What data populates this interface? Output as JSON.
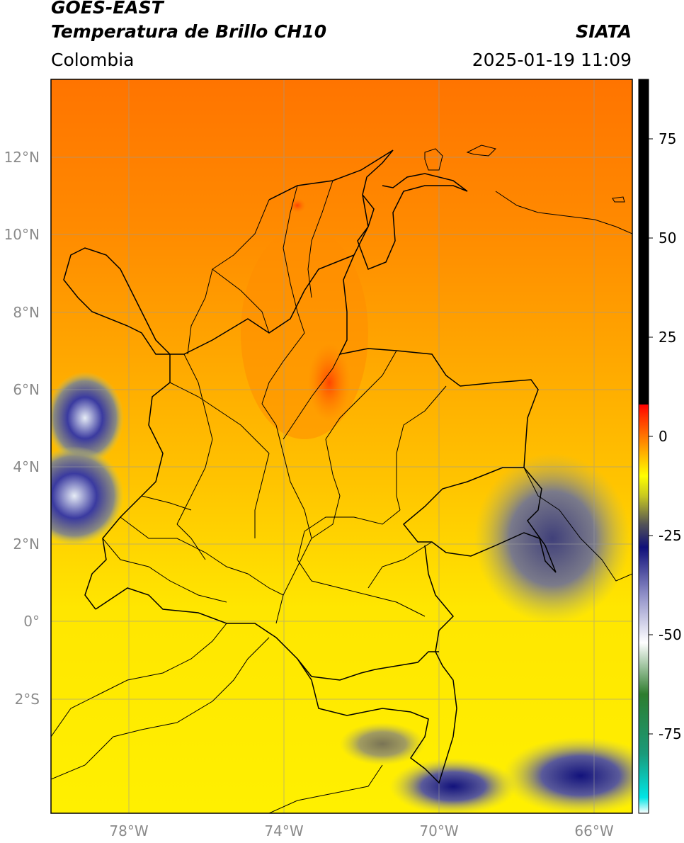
{
  "header": {
    "satellite": "GOES-EAST",
    "product": "Temperatura de Brillo CH10",
    "region": "Colombia",
    "source": "SIATA",
    "datetime": "2025-01-19 11:09"
  },
  "map": {
    "lat_ticks": [
      "12°N",
      "10°N",
      "8°N",
      "6°N",
      "4°N",
      "2°N",
      "0°",
      "2°S"
    ],
    "lon_ticks": [
      "78°W",
      "74°W",
      "70°W",
      "66°W"
    ],
    "extent": {
      "lon_min": -80.0,
      "lon_max": -65.0,
      "lat_min": -5.0,
      "lat_max": 14.0
    },
    "colors": {
      "warm_orange": "#ff7a00",
      "mid_orange": "#ffa000",
      "yellow": "#ffe600",
      "bright_yellow": "#fff200",
      "cloud_blue": "#1a1a8c",
      "border": "#000000"
    }
  },
  "colorbar": {
    "ticks": [
      "75",
      "50",
      "25",
      "0",
      "-25",
      "-50",
      "-75"
    ],
    "tick_values": [
      75,
      50,
      25,
      0,
      -25,
      -50,
      -75
    ],
    "range": [
      -95,
      90
    ],
    "stops": [
      {
        "v": -95,
        "c": "#ffffff"
      },
      {
        "v": -91,
        "c": "#00e5e5"
      },
      {
        "v": -80,
        "c": "#1a9a7a"
      },
      {
        "v": -65,
        "c": "#2e7d2e"
      },
      {
        "v": -52,
        "c": "#ffffff"
      },
      {
        "v": -40,
        "c": "#9090c8"
      },
      {
        "v": -28,
        "c": "#10107a"
      },
      {
        "v": -22,
        "c": "#555555"
      },
      {
        "v": -15,
        "c": "#c8c820"
      },
      {
        "v": -10,
        "c": "#ffff00"
      },
      {
        "v": -3,
        "c": "#ffa000"
      },
      {
        "v": 5,
        "c": "#ff3000"
      },
      {
        "v": 8,
        "c": "#ff0000"
      },
      {
        "v": 8.01,
        "c": "#000000"
      },
      {
        "v": 90,
        "c": "#000000"
      }
    ]
  }
}
